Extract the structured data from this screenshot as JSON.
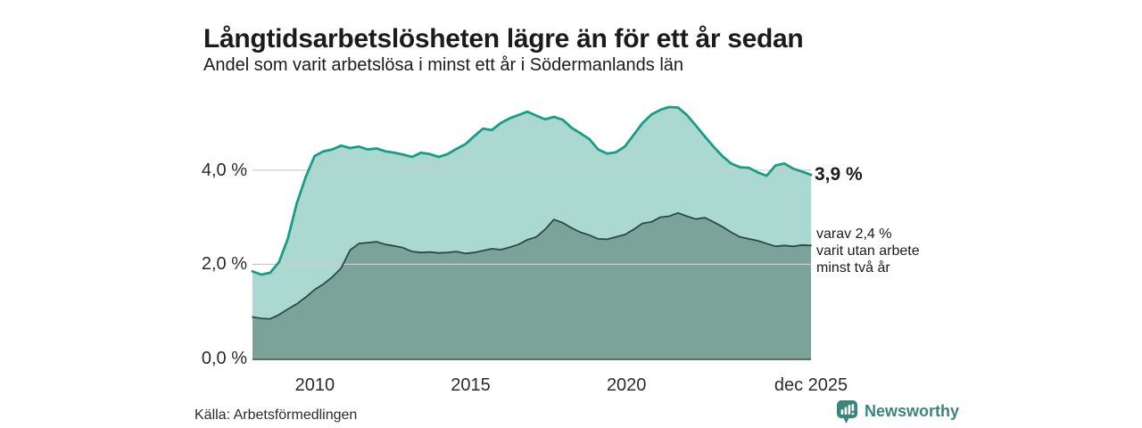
{
  "chart_data": {
    "type": "area",
    "title": "Långtidsarbetslösheten lägre än för ett år sedan",
    "subtitle": "Andel som varit arbetslösa i minst ett år i Södermanlands län",
    "x_range": {
      "start": 2008.0,
      "end": 2025.92
    },
    "ylim": [
      0,
      5.6
    ],
    "grid": "horizontal",
    "legend": "end-labels",
    "style": {
      "grid_color": "#c9cdcb",
      "axis_color": "#5e6e69",
      "background": "#ffffff"
    },
    "yticks": [
      {
        "label": "0,0 %",
        "value": 0
      },
      {
        "label": "2,0 %",
        "value": 2
      },
      {
        "label": "4,0 %",
        "value": 4
      }
    ],
    "xticks": [
      {
        "label": "2010",
        "t": 2010
      },
      {
        "label": "2015",
        "t": 2015
      },
      {
        "label": "2020",
        "t": 2020
      },
      {
        "label": "dec 2025",
        "t": 2025.92
      }
    ],
    "series": [
      {
        "name": "Andel som varit arbetslösa i minst ett år",
        "color": "#1a9c87",
        "fill": "#abd8d0",
        "line_width": 2.8,
        "end_label": "3,9 %",
        "values": [
          1.85,
          1.78,
          1.82,
          2.05,
          2.55,
          3.3,
          3.85,
          4.3,
          4.4,
          4.44,
          4.52,
          4.47,
          4.5,
          4.44,
          4.46,
          4.4,
          4.37,
          4.33,
          4.28,
          4.37,
          4.34,
          4.28,
          4.34,
          4.45,
          4.55,
          4.72,
          4.88,
          4.85,
          5.0,
          5.1,
          5.17,
          5.24,
          5.16,
          5.08,
          5.13,
          5.07,
          4.9,
          4.78,
          4.66,
          4.44,
          4.35,
          4.38,
          4.5,
          4.75,
          5.0,
          5.18,
          5.28,
          5.34,
          5.33,
          5.17,
          4.95,
          4.72,
          4.5,
          4.3,
          4.14,
          4.06,
          4.05,
          3.95,
          3.88,
          4.1,
          4.14,
          4.03,
          3.97,
          3.9
        ]
      },
      {
        "name": "varav varit utan arbete minst två år",
        "color": "#2a4a44",
        "fill": "#7ba39a",
        "line_width": 1.8,
        "end_label": "varav 2,4 % varit utan arbete minst två år",
        "values": [
          0.88,
          0.85,
          0.84,
          0.93,
          1.05,
          1.16,
          1.3,
          1.46,
          1.58,
          1.73,
          1.92,
          2.3,
          2.44,
          2.46,
          2.48,
          2.42,
          2.39,
          2.35,
          2.27,
          2.25,
          2.26,
          2.24,
          2.25,
          2.27,
          2.23,
          2.25,
          2.29,
          2.33,
          2.31,
          2.36,
          2.42,
          2.52,
          2.58,
          2.74,
          2.95,
          2.88,
          2.77,
          2.68,
          2.62,
          2.54,
          2.53,
          2.58,
          2.63,
          2.74,
          2.87,
          2.9,
          3.0,
          3.02,
          3.09,
          3.02,
          2.96,
          2.99,
          2.9,
          2.8,
          2.68,
          2.58,
          2.54,
          2.5,
          2.44,
          2.38,
          2.4,
          2.38,
          2.41,
          2.4
        ]
      }
    ]
  },
  "annotations": {
    "latest_total": "3,9 %",
    "two_year_note": "varav 2,4 %\nvarit utan arbete\nminst två år"
  },
  "footer": {
    "source": "Källa: Arbetsförmedlingen",
    "brand": "Newsworthy"
  }
}
